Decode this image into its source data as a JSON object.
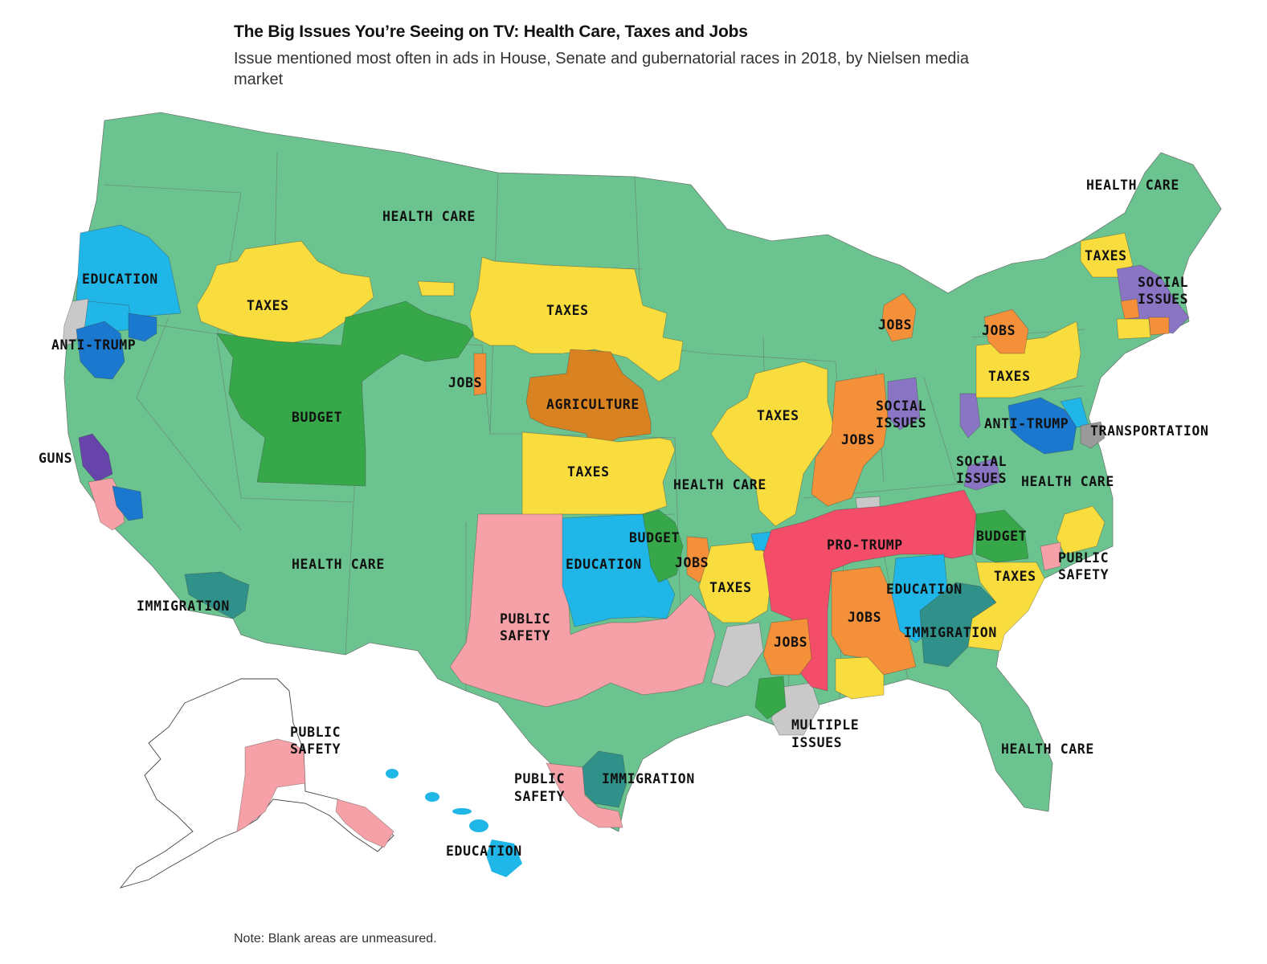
{
  "header": {
    "title": "The Big Issues You’re Seeing on TV: Health Care, Taxes and Jobs",
    "subtitle": "Issue mentioned most often in ads in House, Senate and gubernatorial races in 2018, by Nielsen media market"
  },
  "footer": {
    "note": "Note: Blank areas are unmeasured."
  },
  "colors": {
    "health_care": "#6bc490",
    "taxes": "#f9dc3d",
    "jobs": "#f5903a",
    "agriculture": "#d98222",
    "budget": "#37a84a",
    "education": "#21b6e8",
    "anti_trump": "#1a78cf",
    "pro_trump": "#f34d69",
    "guns": "#6644aa",
    "social_issues": "#8a75c5",
    "immigration": "#2f9189",
    "public_safety": "#f6a1a7",
    "transportation": "#9a9a9a",
    "multiple_issues": "#c9c9c9",
    "unmeasured": "#ffffff"
  },
  "labels": {
    "health_care_nw": "HEALTH CARE",
    "health_care_ne": "HEALTH CARE",
    "health_care_central": "HEALTH CARE",
    "health_care_east": "HEALTH CARE",
    "health_care_sw": "HEALTH CARE",
    "health_care_se": "HEALTH CARE",
    "education_or": "EDUCATION",
    "anti_trump_west": "ANTI-TRUMP",
    "taxes_mt": "TAXES",
    "taxes_sd": "TAXES",
    "taxes_vt": "TAXES",
    "jobs_mi": "JOBS",
    "jobs_ny": "JOBS",
    "social_issues_ma_1": "SOCIAL",
    "social_issues_ma_2": "ISSUES",
    "jobs_co": "JOBS",
    "agriculture": "AGRICULTURE",
    "taxes_pa": "TAXES",
    "budget_ut": "BUDGET",
    "taxes_il": "TAXES",
    "social_issues_oh_1": "SOCIAL",
    "social_issues_oh_2": "ISSUES",
    "jobs_in": "JOBS",
    "anti_trump_md": "ANTI-TRUMP",
    "transportation": "TRANSPORTATION",
    "guns": "GUNS",
    "taxes_ks": "TAXES",
    "social_issues_va_1": "SOCIAL",
    "social_issues_va_2": "ISSUES",
    "budget_ok": "BUDGET",
    "pro_trump": "PRO-TRUMP",
    "budget_nc": "BUDGET",
    "public_safety_nc_1": "PUBLIC",
    "public_safety_nc_2": "SAFETY",
    "education_ok": "EDUCATION",
    "jobs_ar": "JOBS",
    "taxes_ar": "TAXES",
    "taxes_sc": "TAXES",
    "education_ga": "EDUCATION",
    "immigration_az": "IMMIGRATION",
    "public_safety_tx_1": "PUBLIC",
    "public_safety_tx_2": "SAFETY",
    "jobs_al": "JOBS",
    "immigration_ga": "IMMIGRATION",
    "jobs_ms": "JOBS",
    "multiple_issues_1": "MULTIPLE",
    "multiple_issues_2": "ISSUES",
    "public_safety_ak_1": "PUBLIC",
    "public_safety_ak_2": "SAFETY",
    "public_safety_stx_1": "PUBLIC",
    "public_safety_stx_2": "SAFETY",
    "immigration_tx": "IMMIGRATION",
    "education_hi": "EDUCATION"
  }
}
